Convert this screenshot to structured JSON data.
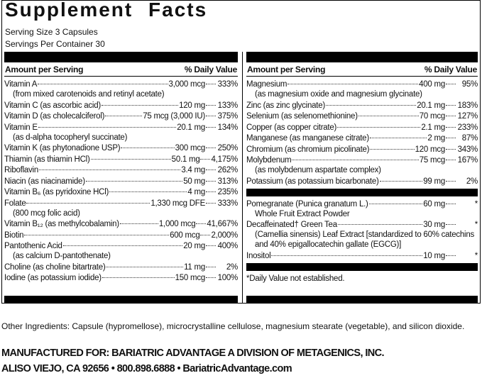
{
  "header": {
    "title": "Supplement Facts",
    "serving_size": "Serving Size 3 Capsules",
    "servings_per_container": "Servings Per Container 30"
  },
  "left": {
    "amount_header": "Amount per Serving",
    "dv_header": "% Daily Value",
    "rows": [
      {
        "name": "Vitamin A",
        "amount": "3,000 mcg",
        "dv": "333%",
        "note": "(from mixed carotenoids and retinyl acetate)"
      },
      {
        "name": "Vitamin C (as ascorbic acid)",
        "amount": "120 mg",
        "dv": "133%"
      },
      {
        "name": "Vitamin D (as cholecalciferol)",
        "amount": "75 mcg (3,000 IU)",
        "dv": "375%"
      },
      {
        "name": "Vitamin E",
        "amount": "20.1 mg",
        "dv": "134%",
        "note": "(as d-alpha tocopheryl succinate)"
      },
      {
        "name": "Vitamin K (as phytonadione USP)",
        "amount": "300 mcg",
        "dv": "250%"
      },
      {
        "name": "Thiamin (as thiamin HCl)",
        "amount": "50.1 mg",
        "dv": "4,175%"
      },
      {
        "name": "Riboflavin",
        "amount": "3.4 mg",
        "dv": "262%"
      },
      {
        "name": "Niacin (as niacinamide)",
        "amount": "50 mg",
        "dv": "313%"
      },
      {
        "name": "Vitamin B₆ (as pyridoxine HCl)",
        "amount": "4 mg",
        "dv": "235%"
      },
      {
        "name": "Folate",
        "amount": "1,330 mcg DFE",
        "dv": "333%",
        "note": "(800 mcg folic acid)"
      },
      {
        "name": "Vitamin B₁₂ (as methylcobalamin)",
        "amount": "1,000 mcg",
        "dv": "41,667%"
      },
      {
        "name": "Biotin",
        "amount": "600 mcg",
        "dv": "2,000%"
      },
      {
        "name": "Pantothenic Acid",
        "amount": "20 mg",
        "dv": "400%",
        "note": "(as calcium D-pantothenate)"
      },
      {
        "name": "Choline (as choline bitartrate)",
        "amount": "11 mg",
        "dv": "2%"
      },
      {
        "name": "Iodine (as potassium iodide)",
        "amount": "150 mcg",
        "dv": "100%"
      }
    ]
  },
  "right": {
    "amount_header": "Amount per Serving",
    "dv_header": "% Daily Value",
    "rows": [
      {
        "name": "Magnesium",
        "amount": "400 mg",
        "dv": "95%",
        "note": "(as magnesium oxide and magnesium glycinate)"
      },
      {
        "name": "Zinc (as zinc glycinate)",
        "amount": "20.1 mg",
        "dv": "183%"
      },
      {
        "name": "Selenium (as selenomethionine)",
        "amount": "70 mcg",
        "dv": "127%"
      },
      {
        "name": "Copper (as copper citrate)",
        "amount": "2.1 mg",
        "dv": "233%"
      },
      {
        "name": "Manganese (as manganese citrate)",
        "amount": "2 mg",
        "dv": "87%"
      },
      {
        "name": "Chromium (as chromium picolinate)",
        "amount": "120 mcg",
        "dv": "343%"
      },
      {
        "name": "Molybdenum",
        "amount": "75 mcg",
        "dv": "167%",
        "note": "(as molybdenum aspartate complex)"
      },
      {
        "name": "Potassium (as potassium bicarbonate)",
        "amount": "99 mg",
        "dv": "2%"
      }
    ],
    "other_rows": [
      {
        "name": "Pomegranate (Punica granatum L.)",
        "amount": "60 mg",
        "dv": "*",
        "note": "Whole Fruit Extract Powder"
      },
      {
        "name": "Decaffeinated† Green Tea",
        "amount": "30 mg",
        "dv": "*",
        "note": "(Camellia sinensis) Leaf Extract [standardized to 60% catechins and 40% epigallocatechin gallate (EGCG)]"
      },
      {
        "name": "Inositol",
        "amount": "10 mg",
        "dv": "*"
      }
    ],
    "footnote": "*Daily Value not established."
  },
  "other_ingredients": "Other Ingredients: Capsule (hypromellose), microcrystalline cellulose, magnesium stearate (vegetable), and silicon dioxide.",
  "manufacturer": [
    "MANUFACTURED FOR: BARIATRIC ADVANTAGE A DIVISION OF METAGENICS, INC.",
    "ALISO VIEJO, CA 92656 • 800.898.6888 • BariatricAdvantage.com"
  ]
}
